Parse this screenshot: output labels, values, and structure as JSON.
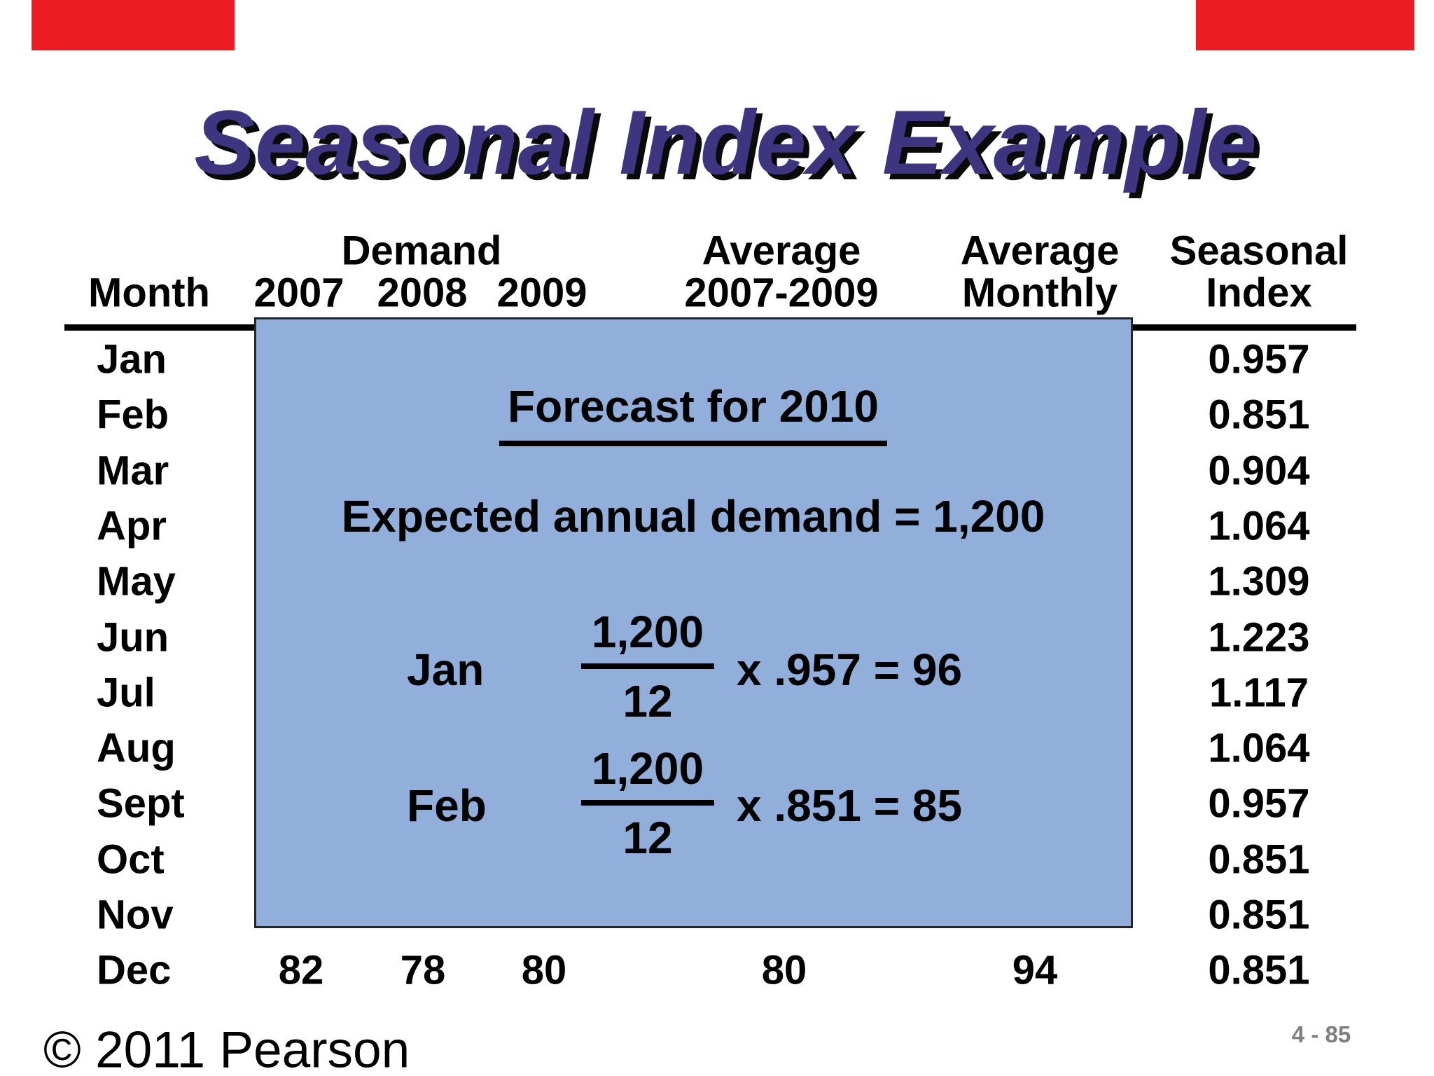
{
  "slide": {
    "title": "Seasonal Index Example",
    "footer": {
      "copyright": "© 2011 Pearson",
      "page_number": "4 - 85"
    }
  },
  "table": {
    "header": {
      "month": "Month",
      "demand_group": "Demand",
      "year_2007": "2007",
      "year_2008": "2008",
      "year_2009": "2009",
      "average_top": "Average",
      "average_bottom": "2007-2009",
      "avg_monthly_top": "Average",
      "avg_monthly_bottom": "Monthly",
      "seasonal_top": "Seasonal",
      "seasonal_bottom": "Index"
    },
    "months": [
      "Jan",
      "Feb",
      "Mar",
      "Apr",
      "May",
      "Jun",
      "Jul",
      "Aug",
      "Sept",
      "Oct",
      "Nov",
      "Dec"
    ],
    "seasonal_index": [
      "0.957",
      "0.851",
      "0.904",
      "1.064",
      "1.309",
      "1.223",
      "1.117",
      "1.064",
      "0.957",
      "0.851",
      "0.851",
      "0.851"
    ],
    "dec_row": {
      "y2007": "82",
      "y2008": "78",
      "y2009": "80",
      "average": "80",
      "avg_monthly": "94"
    }
  },
  "overlay": {
    "heading": "Forecast for 2010",
    "expected_line": "Expected annual demand = 1,200",
    "examples": [
      {
        "month": "Jan",
        "numerator": "1,200",
        "denominator": "12",
        "calculation": "x .957 = 96"
      },
      {
        "month": "Feb",
        "numerator": "1,200",
        "denominator": "12",
        "calculation": "x .851 = 85"
      }
    ]
  },
  "colors": {
    "title": "#3e3580",
    "overlay_fill": "#92aedb",
    "overlay_border": "#24242c",
    "accent_red": "#ed1c24",
    "page_number_gray": "#7f7f7f"
  }
}
